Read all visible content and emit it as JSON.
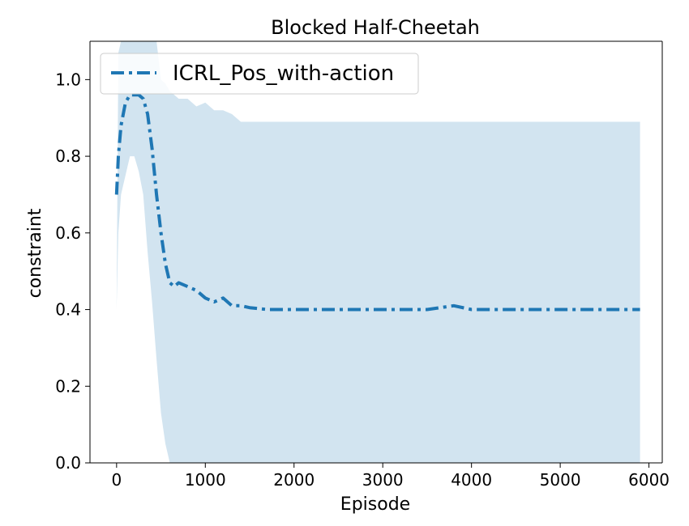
{
  "chart_data": {
    "type": "line",
    "title": "Blocked Half-Cheetah",
    "xlabel": "Episode",
    "ylabel": "constraint",
    "xlim": [
      -300,
      6150
    ],
    "ylim": [
      0.0,
      1.1
    ],
    "xticks": [
      0,
      1000,
      2000,
      3000,
      4000,
      5000,
      6000
    ],
    "xtick_labels": [
      "0",
      "1000",
      "2000",
      "3000",
      "4000",
      "5000",
      "6000"
    ],
    "yticks": [
      0.0,
      0.2,
      0.4,
      0.6,
      0.8,
      1.0
    ],
    "ytick_labels": [
      "0.0",
      "0.2",
      "0.4",
      "0.6",
      "0.8",
      "1.0"
    ],
    "grid": false,
    "legend_position": "top-left",
    "colors": {
      "line": "#1f77b4",
      "band": "#1f77b4"
    },
    "series": [
      {
        "name": "ICRL_Pos_with-action",
        "line_style": "dash-dot",
        "x": [
          0,
          20,
          50,
          100,
          150,
          200,
          250,
          300,
          350,
          400,
          450,
          500,
          550,
          600,
          650,
          700,
          800,
          900,
          1000,
          1100,
          1200,
          1300,
          1400,
          1500,
          1700,
          2000,
          2500,
          3000,
          3500,
          3800,
          4000,
          4500,
          5000,
          5500,
          5900
        ],
        "y": [
          0.7,
          0.8,
          0.88,
          0.94,
          0.96,
          0.96,
          0.96,
          0.95,
          0.91,
          0.82,
          0.7,
          0.6,
          0.52,
          0.47,
          0.46,
          0.47,
          0.46,
          0.45,
          0.43,
          0.42,
          0.43,
          0.41,
          0.41,
          0.405,
          0.4,
          0.4,
          0.4,
          0.4,
          0.4,
          0.41,
          0.4,
          0.4,
          0.4,
          0.4,
          0.4
        ],
        "band_upper": [
          0.4,
          1.07,
          1.1,
          1.1,
          1.1,
          1.1,
          1.1,
          1.1,
          1.1,
          1.1,
          1.1,
          1.0,
          0.99,
          0.97,
          0.96,
          0.95,
          0.95,
          0.93,
          0.94,
          0.92,
          0.92,
          0.91,
          0.89,
          0.89,
          0.89,
          0.89,
          0.89,
          0.89,
          0.89,
          0.89,
          0.89,
          0.89,
          0.89,
          0.89,
          0.89
        ],
        "band_lower": [
          0.4,
          0.6,
          0.7,
          0.75,
          0.8,
          0.8,
          0.76,
          0.7,
          0.55,
          0.42,
          0.27,
          0.13,
          0.05,
          0.0,
          0.0,
          0.0,
          0.0,
          0.0,
          0.0,
          0.0,
          0.0,
          0.0,
          0.0,
          0.0,
          0.0,
          0.0,
          0.0,
          0.0,
          0.0,
          0.0,
          0.0,
          0.0,
          0.0,
          0.0,
          0.0
        ]
      }
    ]
  }
}
